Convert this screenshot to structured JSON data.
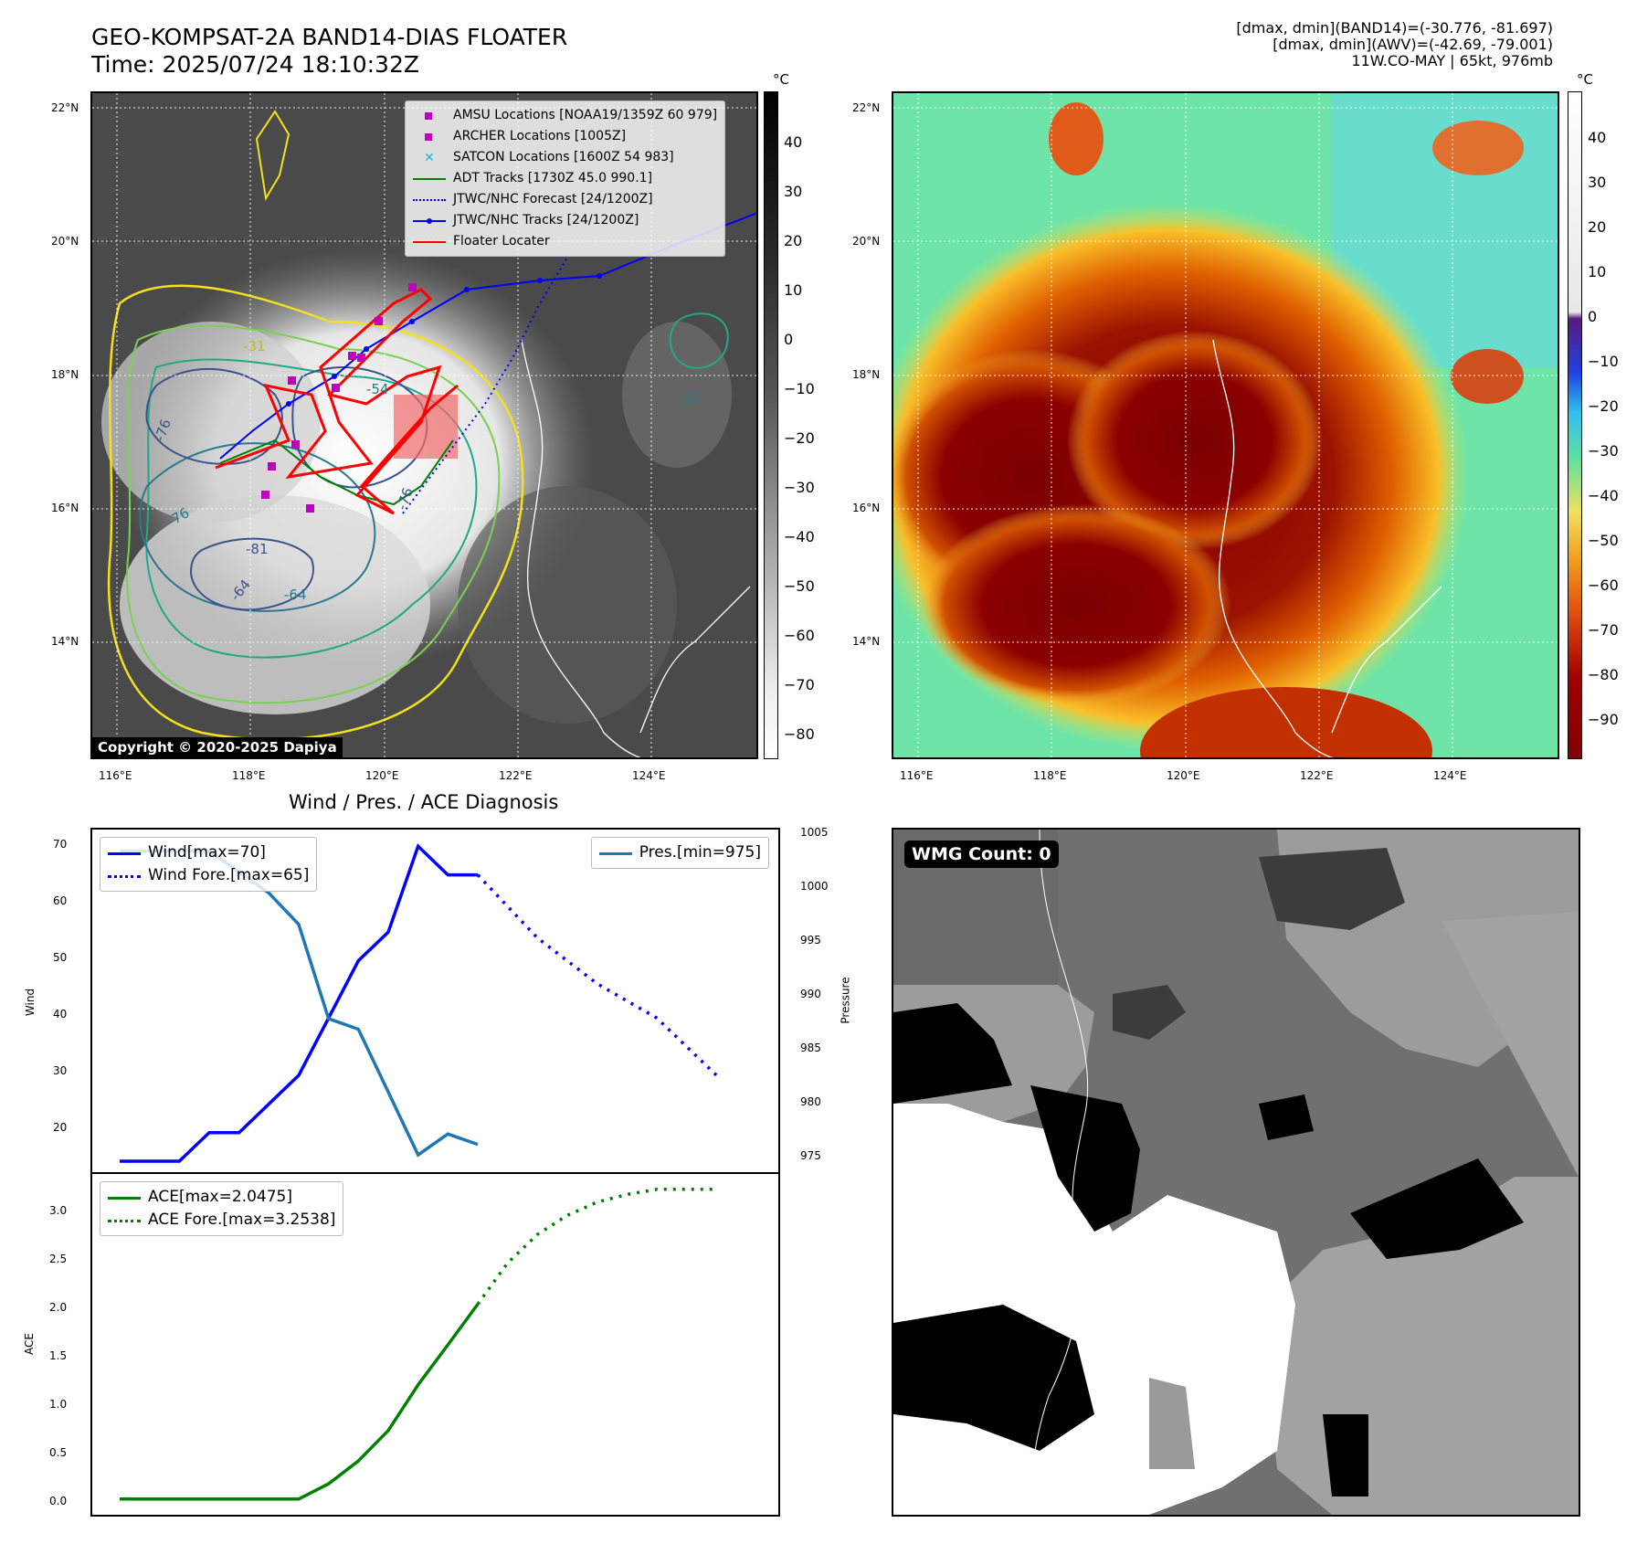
{
  "header": {
    "title_line1": "GEO-KOMPSAT-2A BAND14-DIAS FLOATER",
    "title_line2": "Time: 2025/07/24 18:10:32Z",
    "info_line1": "[dmax, dmin](BAND14)=(-30.776, -81.697)",
    "info_line2": "[dmax, dmin](AWV)=(-42.69, -79.001)",
    "info_line3": "11W.CO-MAY | 65kt, 976mb"
  },
  "map": {
    "lat_labels": [
      "22°N",
      "20°N",
      "18°N",
      "16°N",
      "14°N"
    ],
    "lon_labels": [
      "116°E",
      "118°E",
      "120°E",
      "122°E",
      "124°E"
    ],
    "contour_labels": [
      "-31",
      "-54",
      "-76",
      "-76",
      "-76",
      "-81",
      "-64",
      "-64",
      "-31"
    ],
    "copyright": "Copyright © 2020-2025 Dapiya",
    "legend": [
      {
        "label": "AMSU Locations [NOAA19/1359Z 60 979]",
        "color": "#bf00bf",
        "kind": "square"
      },
      {
        "label": "ARCHER Locations [1005Z]",
        "color": "#bf00bf",
        "kind": "square"
      },
      {
        "label": "SATCON Locations [1600Z 54 983]",
        "color": "#17becf",
        "kind": "cross"
      },
      {
        "label": "ADT Tracks [1730Z 45.0 990.1]",
        "color": "#008000",
        "kind": "line"
      },
      {
        "label": "JTWC/NHC Forecast [24/1200Z]",
        "color": "#0000ff",
        "kind": "dotted"
      },
      {
        "label": "JTWC/NHC Tracks [24/1200Z]",
        "color": "#0000ff",
        "kind": "line-dot"
      },
      {
        "label": "Floater Locater",
        "color": "#ff0000",
        "kind": "line"
      }
    ]
  },
  "colorbar_gray": {
    "unit": "°C",
    "ticks": [
      "40",
      "30",
      "20",
      "10",
      "0",
      "−10",
      "−20",
      "−30",
      "−40",
      "−50",
      "−60",
      "−70",
      "−80"
    ]
  },
  "colorbar_color": {
    "unit": "°C",
    "ticks": [
      "40",
      "30",
      "20",
      "10",
      "0",
      "−10",
      "−20",
      "−30",
      "−40",
      "−50",
      "−60",
      "−70",
      "−80",
      "−90"
    ]
  },
  "diagnosis_title": "Wind / Pres. / ACE Diagnosis",
  "wmg_label": "WMG Count: 0",
  "chart_data": [
    {
      "type": "line",
      "title": "Wind / Pres. / ACE Diagnosis",
      "ylabel": "Wind",
      "y2label": "Pressure",
      "ylim": [
        15,
        71
      ],
      "y2lim": [
        974.4,
        1005
      ],
      "yticks": [
        "70",
        "60",
        "50",
        "40",
        "30",
        "20"
      ],
      "y2ticks": [
        "1005",
        "1000",
        "995",
        "990",
        "985",
        "980",
        "975"
      ],
      "legend_left": [
        "Wind[max=70]",
        "Wind Fore.[max=65]"
      ],
      "legend_right": [
        "Pres.[min=975]"
      ],
      "series": [
        {
          "name": "Wind[max=70]",
          "x": [
            0,
            2,
            3,
            4,
            6,
            7,
            8,
            9,
            10,
            11,
            12
          ],
          "values": [
            15,
            15,
            20,
            20,
            30,
            40,
            50,
            55,
            70,
            65,
            65
          ]
        },
        {
          "name": "Wind Fore.[max=65]",
          "x": [
            12,
            14,
            16,
            18,
            20
          ],
          "values": [
            65,
            54,
            46,
            40,
            30
          ],
          "style": "dotted"
        },
        {
          "name": "Pres.[min=975]",
          "x": [
            0,
            3,
            5,
            6,
            7,
            8,
            9,
            10,
            11,
            12
          ],
          "values": [
            1004,
            1004,
            1000,
            997,
            988,
            987,
            981,
            975,
            977,
            976
          ],
          "axis": "right"
        }
      ]
    },
    {
      "type": "line",
      "ylabel": "ACE",
      "ylim": [
        -0.05,
        3.3
      ],
      "yticks": [
        "3.0",
        "2.5",
        "2.0",
        "1.5",
        "1.0",
        "0.5",
        "0.0"
      ],
      "legend_left": [
        "ACE[max=2.0475]",
        "ACE Fore.[max=3.2538]"
      ],
      "series": [
        {
          "name": "ACE[max=2.0475]",
          "x": [
            0,
            6,
            7,
            8,
            9,
            10,
            11,
            12
          ],
          "values": [
            0,
            0,
            0.16,
            0.4,
            0.72,
            1.2,
            1.62,
            2.0475
          ]
        },
        {
          "name": "ACE Fore.[max=3.2538]",
          "x": [
            12,
            13,
            14,
            15,
            16,
            17,
            18,
            19,
            20
          ],
          "values": [
            2.0475,
            2.48,
            2.78,
            2.98,
            3.12,
            3.2,
            3.2538,
            3.2538,
            3.2538
          ],
          "style": "dotted"
        }
      ]
    }
  ]
}
